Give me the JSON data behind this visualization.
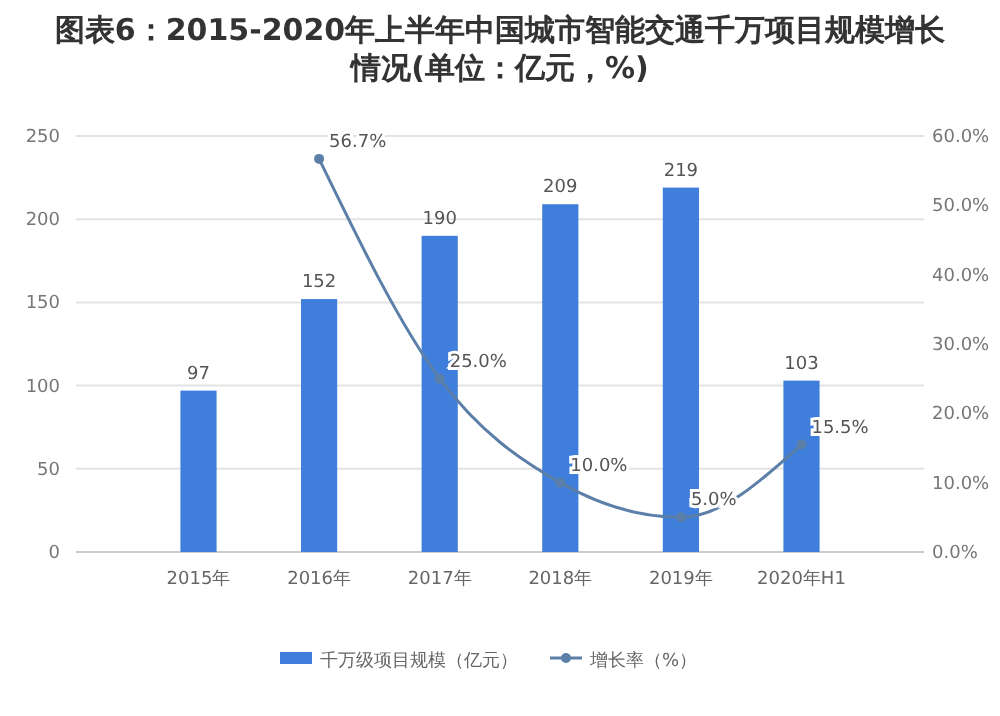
{
  "chart_data": {
    "type": "bar",
    "title": "图表6：2015-2020年上半年中国城市智能交通千万项目规模增长情况(单位：亿元，%)",
    "categories": [
      "2015年",
      "2016年",
      "2017年",
      "2018年",
      "2019年",
      "2020年H1"
    ],
    "series": [
      {
        "name": "千万级项目规模（亿元）",
        "color": "#3f7fdb",
        "values": [
          97,
          152,
          190,
          209,
          219,
          103
        ],
        "value_labels": [
          "97",
          "152",
          "190",
          "209",
          "219",
          "103"
        ]
      },
      {
        "name": "增长率（%）",
        "type": "line",
        "axis": "y2",
        "color": "#5b7fa8",
        "values": [
          null,
          56.7,
          25.0,
          10.0,
          5.0,
          15.5
        ],
        "value_labels": [
          null,
          "56.7%",
          "25.0%",
          "10.0%",
          "5.0%",
          "15.5%"
        ]
      }
    ],
    "ylim": [
      0,
      250
    ],
    "yticks": [
      0,
      50,
      100,
      150,
      200,
      250
    ],
    "y2lim": [
      0,
      60
    ],
    "y2ticks": [
      {
        "value": 0,
        "label": "0.0%"
      },
      {
        "value": 10,
        "label": "10.0%"
      },
      {
        "value": 20,
        "label": "20.0%"
      },
      {
        "value": 30,
        "label": "30.0%"
      },
      {
        "value": 40,
        "label": "40.0%"
      },
      {
        "value": 50,
        "label": "50.0%"
      },
      {
        "value": 60,
        "label": "60.0%"
      }
    ],
    "grid": "y",
    "legend": "bottom",
    "marker": "circle"
  }
}
